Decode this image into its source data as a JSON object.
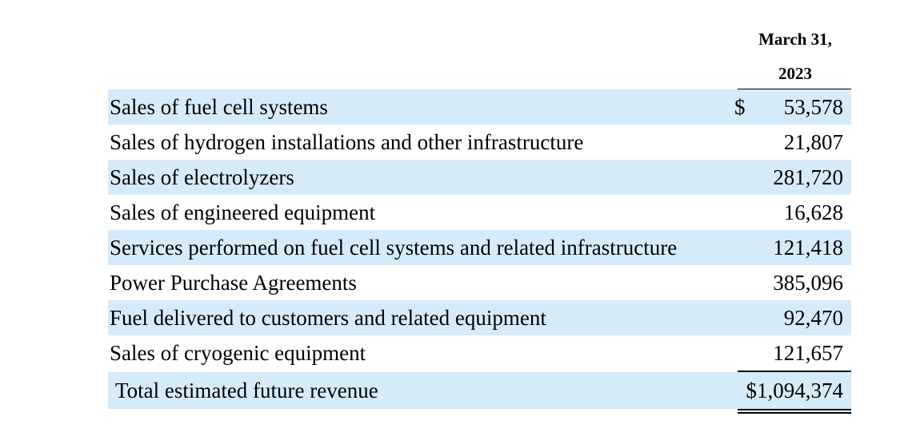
{
  "header": {
    "month": "March 31,",
    "year": "2023"
  },
  "rows": [
    {
      "label": "Sales of fuel cell systems",
      "currency": "$",
      "value": "53,578"
    },
    {
      "label": "Sales of hydrogen installations and other infrastructure",
      "currency": "",
      "value": "21,807"
    },
    {
      "label": "Sales of electrolyzers",
      "currency": "",
      "value": "281,720"
    },
    {
      "label": "Sales of engineered equipment",
      "currency": "",
      "value": "16,628"
    },
    {
      "label": "Services performed on fuel cell systems and related infrastructure",
      "currency": "",
      "value": "121,418"
    },
    {
      "label": "Power Purchase Agreements",
      "currency": "",
      "value": "385,096"
    },
    {
      "label": "Fuel delivered to customers and related equipment",
      "currency": "",
      "value": "92,470"
    },
    {
      "label": "Sales of cryogenic equipment",
      "currency": "",
      "value": "121,657"
    }
  ],
  "total": {
    "label": "Total estimated future revenue",
    "value": "$1,094,374"
  },
  "colors": {
    "shade": "#d6ebfa"
  }
}
